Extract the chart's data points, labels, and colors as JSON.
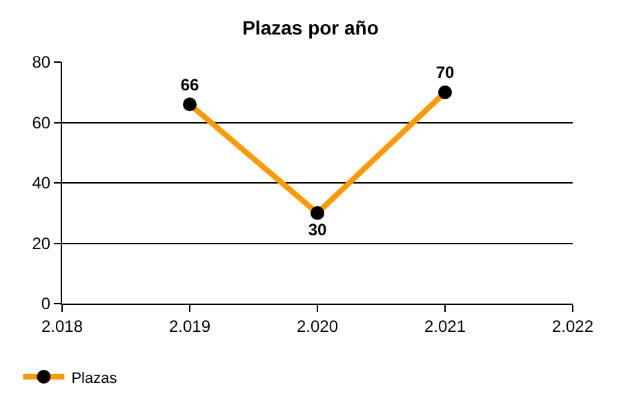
{
  "chart_data": {
    "type": "line",
    "title": "Plazas por año",
    "x": [
      2019,
      2020,
      2021
    ],
    "series": [
      {
        "name": "Plazas",
        "color": "#ff9900",
        "values": [
          66,
          30,
          70
        ]
      }
    ],
    "xlim": [
      2018,
      2022
    ],
    "xticks": [
      {
        "value": 2018,
        "label": "2.018"
      },
      {
        "value": 2019,
        "label": "2.019"
      },
      {
        "value": 2020,
        "label": "2.020"
      },
      {
        "value": 2021,
        "label": "2.021"
      },
      {
        "value": 2022,
        "label": "2.022"
      }
    ],
    "ylim": [
      0,
      80
    ],
    "yticks": [
      0,
      20,
      40,
      60,
      80
    ],
    "grid": "y",
    "legend": "bottom left",
    "marker": "circle",
    "line_style": "solid",
    "data_labels": true
  }
}
